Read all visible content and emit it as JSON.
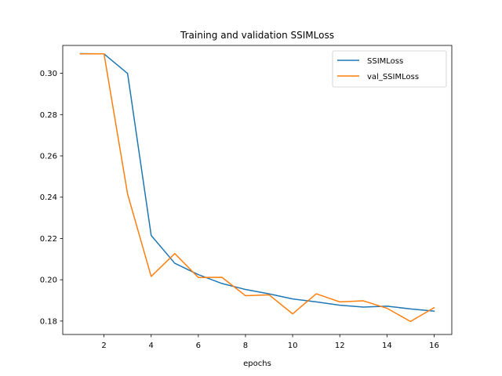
{
  "chart_data": {
    "type": "line",
    "title": "Training and validation SSIMLoss",
    "xlabel": "epochs",
    "ylabel": "",
    "xlim": [
      0.25,
      16.75
    ],
    "ylim": [
      0.1735,
      0.3135
    ],
    "xticks": [
      2,
      4,
      6,
      8,
      10,
      12,
      14,
      16
    ],
    "xtick_labels": [
      "2",
      "4",
      "6",
      "8",
      "10",
      "12",
      "14",
      "16"
    ],
    "yticks": [
      0.18,
      0.2,
      0.22,
      0.24,
      0.26,
      0.28,
      0.3
    ],
    "ytick_labels": [
      "0.18",
      "0.20",
      "0.22",
      "0.24",
      "0.26",
      "0.28",
      "0.30"
    ],
    "grid": false,
    "legend_position": "top-right",
    "x": [
      1,
      2,
      3,
      4,
      5,
      6,
      7,
      8,
      9,
      10,
      11,
      12,
      13,
      14,
      15,
      16
    ],
    "series": [
      {
        "name": "SSIMLoss",
        "color": "#1f77b4",
        "values": [
          0.3095,
          0.3094,
          0.2999,
          0.2215,
          0.208,
          0.2025,
          0.1982,
          0.1953,
          0.1932,
          0.1907,
          0.1893,
          0.1877,
          0.1868,
          0.1872,
          0.1859,
          0.1848
        ]
      },
      {
        "name": "val_SSIMLoss",
        "color": "#ff7f0e",
        "values": [
          0.3094,
          0.3094,
          0.2415,
          0.2016,
          0.2127,
          0.2011,
          0.2012,
          0.1923,
          0.1927,
          0.1835,
          0.1932,
          0.1893,
          0.1898,
          0.1862,
          0.1798,
          0.1865
        ]
      }
    ]
  }
}
